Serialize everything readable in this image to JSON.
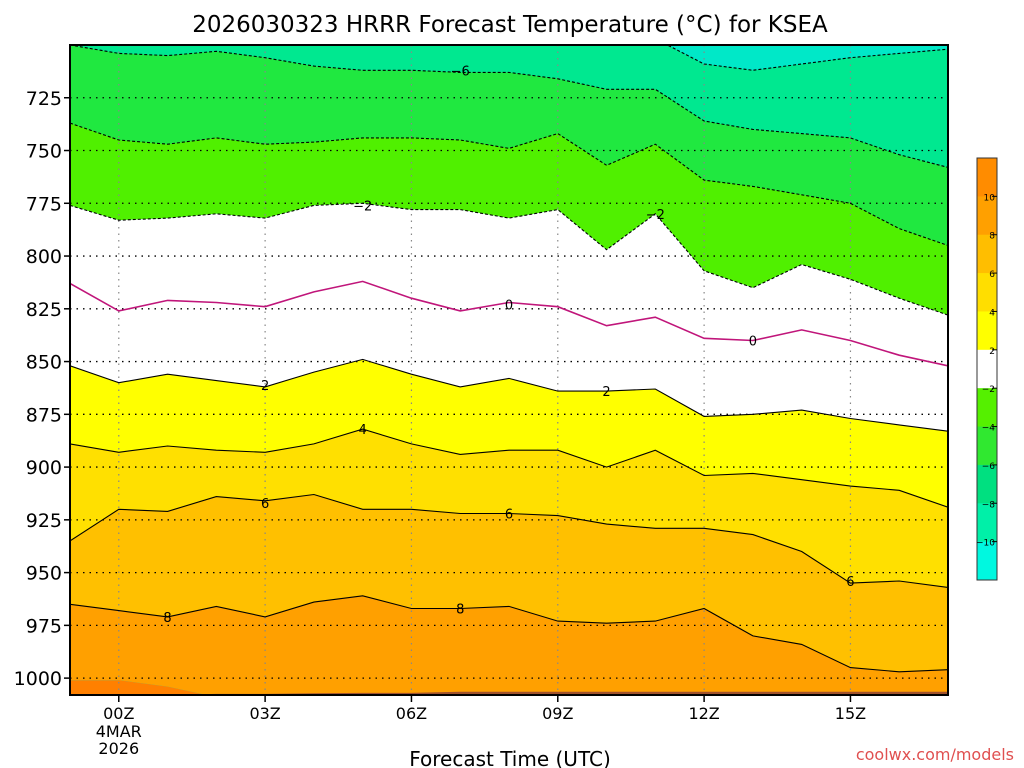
{
  "chart_data": {
    "type": "contour",
    "title": "2026030323 HRRR Forecast Temperature (°C) for KSEA",
    "xlabel": "Forecast Time (UTC)",
    "credit": "coolwx.com/models",
    "x_hours": [
      -1,
      0,
      1,
      2,
      3,
      4,
      5,
      6,
      7,
      8,
      9,
      10,
      11,
      12,
      13,
      14,
      15,
      16,
      17
    ],
    "xlim": [
      -1,
      17
    ],
    "ylim": [
      1008,
      700
    ],
    "x_ticks": [
      {
        "hour": 0,
        "label": "00Z",
        "sublabels": [
          "4MAR",
          "2026"
        ]
      },
      {
        "hour": 3,
        "label": "03Z",
        "sublabels": []
      },
      {
        "hour": 6,
        "label": "06Z",
        "sublabels": []
      },
      {
        "hour": 9,
        "label": "09Z",
        "sublabels": []
      },
      {
        "hour": 12,
        "label": "12Z",
        "sublabels": []
      },
      {
        "hour": 15,
        "label": "15Z",
        "sublabels": []
      }
    ],
    "y_ticks": [
      725,
      750,
      775,
      800,
      825,
      850,
      875,
      900,
      925,
      950,
      975,
      1000
    ],
    "y_tick_labels": [
      "725",
      "750",
      "775",
      "800",
      "825",
      "850",
      "875",
      "900",
      "925",
      "950",
      "975",
      "1000"
    ],
    "surface_pressure_hpa": [
      1008,
      1008,
      1008,
      1007.5,
      1007.5,
      1007.2,
      1007,
      1007,
      1006.5,
      1006.5,
      1006.5,
      1006.5,
      1006.5,
      1006.5,
      1006.5,
      1006.5,
      1006.5,
      1006.5,
      1006.5
    ],
    "contours": [
      {
        "level": -8,
        "pressure_hpa": [
          697,
          697,
          697,
          697,
          697,
          697,
          697,
          697,
          697,
          697,
          697,
          697,
          697,
          709,
          712,
          709,
          706,
          704,
          702
        ]
      },
      {
        "level": -6,
        "pressure_hpa": [
          700,
          704,
          705,
          703,
          706,
          710,
          712,
          712,
          713,
          713,
          716,
          721,
          721,
          736,
          740,
          742,
          744,
          752,
          758
        ]
      },
      {
        "level": -4,
        "pressure_hpa": [
          737,
          745,
          747,
          744,
          747,
          746,
          744,
          744,
          745,
          749,
          742,
          757,
          747,
          764,
          767,
          771,
          775,
          787,
          795
        ]
      },
      {
        "level": -2,
        "pressure_hpa": [
          776,
          783,
          782,
          780,
          782,
          776,
          775,
          778,
          778,
          782,
          778,
          797,
          780,
          807,
          815,
          804,
          811,
          820,
          828
        ]
      },
      {
        "level": 0,
        "pressure_hpa": [
          813,
          826,
          821,
          822,
          824,
          817,
          812,
          820,
          826,
          822,
          824,
          833,
          829,
          839,
          840,
          835,
          840,
          847,
          852
        ]
      },
      {
        "level": 2,
        "pressure_hpa": [
          852,
          860,
          856,
          859,
          862,
          855,
          849,
          856,
          862,
          858,
          864,
          864,
          863,
          876,
          875,
          873,
          877,
          880,
          883
        ]
      },
      {
        "level": 4,
        "pressure_hpa": [
          889,
          893,
          890,
          892,
          893,
          889,
          882,
          889,
          894,
          892,
          892,
          900,
          892,
          904,
          903,
          906,
          909,
          911,
          919
        ]
      },
      {
        "level": 6,
        "pressure_hpa": [
          935,
          920,
          921,
          914,
          916,
          913,
          920,
          920,
          922,
          922,
          923,
          927,
          929,
          929,
          932,
          940,
          955,
          954,
          957
        ]
      },
      {
        "level": 8,
        "pressure_hpa": [
          965,
          968,
          971,
          966,
          971,
          964,
          961,
          967,
          967,
          966,
          973,
          974,
          973,
          967,
          980,
          984,
          995,
          997,
          996
        ]
      },
      {
        "level": 10,
        "pressure_hpa": [
          1001,
          1001,
          1004,
          1009,
          1009,
          1009,
          1009,
          1009,
          1009,
          1009,
          1009,
          1009,
          1009,
          1009,
          1009,
          1009,
          1009,
          1009,
          1009
        ]
      }
    ],
    "contour_labels": [
      {
        "text": "−6",
        "hour": 7,
        "pressure_hpa": 712
      },
      {
        "text": "−2",
        "hour": 5,
        "pressure_hpa": 776
      },
      {
        "text": "−2",
        "hour": 11,
        "pressure_hpa": 780
      },
      {
        "text": "0",
        "hour": 8,
        "pressure_hpa": 823
      },
      {
        "text": "0",
        "hour": 13,
        "pressure_hpa": 840
      },
      {
        "text": "2",
        "hour": 3,
        "pressure_hpa": 861
      },
      {
        "text": "2",
        "hour": 10,
        "pressure_hpa": 864
      },
      {
        "text": "4",
        "hour": 5,
        "pressure_hpa": 882
      },
      {
        "text": "6",
        "hour": 3,
        "pressure_hpa": 917
      },
      {
        "text": "6",
        "hour": 8,
        "pressure_hpa": 922
      },
      {
        "text": "6",
        "hour": 15,
        "pressure_hpa": 954
      },
      {
        "text": "8",
        "hour": 1,
        "pressure_hpa": 971
      },
      {
        "text": "8",
        "hour": 7,
        "pressure_hpa": 967
      }
    ],
    "colorbar": {
      "bins": [
        {
          "low": 10,
          "high": 12,
          "color": "#ff8c00"
        },
        {
          "low": 8,
          "high": 10,
          "color": "#ffa000"
        },
        {
          "low": 6,
          "high": 8,
          "color": "#ffbe00"
        },
        {
          "low": 4,
          "high": 6,
          "color": "#ffde00"
        },
        {
          "low": 2,
          "high": 4,
          "color": "#ffff00"
        },
        {
          "low": -2,
          "high": 2,
          "color": "#ffffff"
        },
        {
          "low": -4,
          "high": -2,
          "color": "#55f000"
        },
        {
          "low": -6,
          "high": -4,
          "color": "#30e830"
        },
        {
          "low": -8,
          "high": -6,
          "color": "#00e080"
        },
        {
          "low": -10,
          "high": -8,
          "color": "#00f0a8"
        },
        {
          "low": -12,
          "high": -10,
          "color": "#00f8e0"
        }
      ],
      "ticks": [
        "10",
        "8",
        "6",
        "4",
        "2",
        "−2",
        "−4",
        "−6",
        "−8",
        "−10"
      ]
    },
    "band_colors": {
      "below_-8": "#00e8c8",
      "-8_to_-6": "#00e890",
      "-6_to_-4": "#20e840",
      "-4_to_-2": "#50f000",
      "-2_to_2": "#ffffff",
      "2_to_4": "#ffff00",
      "4_to_6": "#ffe000",
      "6_to_8": "#ffc000",
      "8_to_10": "#ffa000",
      "above_10": "#ff8000",
      "ground": "#a0522d",
      "zero_line": "#c0157a"
    }
  }
}
